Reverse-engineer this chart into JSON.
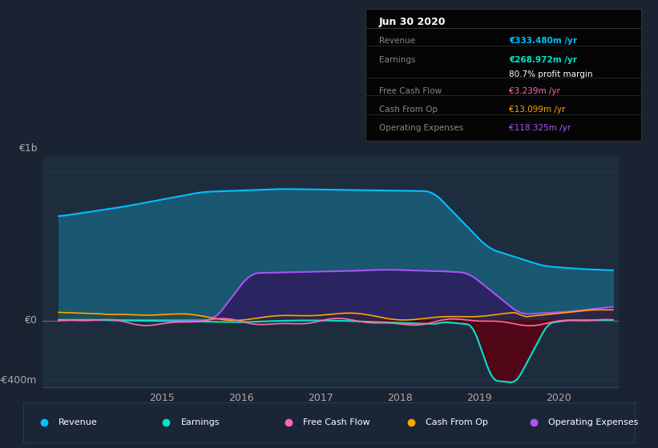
{
  "bg_color": "#1a2332",
  "plot_bg_color": "#1e2d3d",
  "title": "Jun 30 2020",
  "ylabel_top": "€1b",
  "ylabel_zero": "€0",
  "ylabel_bottom": "-€400m",
  "ylim": [
    -450,
    1100
  ],
  "xlim": [
    2013.5,
    2020.75
  ],
  "xticks": [
    2015,
    2016,
    2017,
    2018,
    2019,
    2020
  ],
  "series": {
    "revenue": {
      "color": "#00bfff",
      "fill_color": "#1a5f7a",
      "fill_alpha": 0.85,
      "label": "Revenue"
    },
    "earnings": {
      "color": "#00e5cc",
      "fill_color": "#003333",
      "fill_alpha": 0.7,
      "label": "Earnings"
    },
    "free_cash_flow": {
      "color": "#ff69b4",
      "fill_color": "#5a0020",
      "fill_alpha": 0.7,
      "label": "Free Cash Flow"
    },
    "cash_from_op": {
      "color": "#ffa500",
      "fill_color": "#3a2800",
      "fill_alpha": 0.5,
      "label": "Cash From Op"
    },
    "operating_expenses": {
      "color": "#a855f7",
      "fill_color": "#2d1b5e",
      "fill_alpha": 0.85,
      "label": "Operating Expenses"
    }
  },
  "info_rows": [
    {
      "label": "Revenue",
      "value": "€333.480m /yr",
      "value_color": "#00bfff",
      "sep_above": false
    },
    {
      "label": "Earnings",
      "value": "€268.972m /yr",
      "value_color": "#00e5cc",
      "sep_above": true
    },
    {
      "label": "",
      "value": "80.7% profit margin",
      "value_color": "#ffffff",
      "sep_above": false
    },
    {
      "label": "Free Cash Flow",
      "value": "€3.239m /yr",
      "value_color": "#ff69b4",
      "sep_above": true
    },
    {
      "label": "Cash From Op",
      "value": "€13.099m /yr",
      "value_color": "#ffa500",
      "sep_above": true
    },
    {
      "label": "Operating Expenses",
      "value": "€118.325m /yr",
      "value_color": "#a855f7",
      "sep_above": true
    }
  ],
  "legend_items": [
    {
      "label": "Revenue",
      "color": "#00bfff"
    },
    {
      "label": "Earnings",
      "color": "#00e5cc"
    },
    {
      "label": "Free Cash Flow",
      "color": "#ff69b4"
    },
    {
      "label": "Cash From Op",
      "color": "#ffa500"
    },
    {
      "label": "Operating Expenses",
      "color": "#a855f7"
    }
  ]
}
